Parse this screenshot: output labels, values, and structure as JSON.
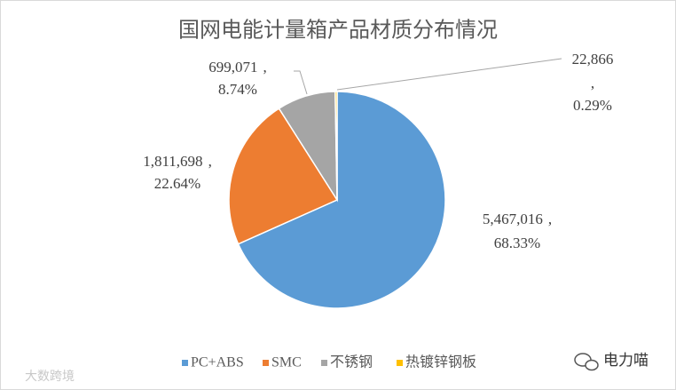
{
  "chart_data": {
    "type": "pie",
    "title": "国网电能计量箱产品材质分布情况",
    "categories": [
      "PC+ABS",
      "SMC",
      "不锈钢",
      "热镀锌钢板"
    ],
    "values": [
      5467016,
      1811698,
      699071,
      22866
    ],
    "value_labels": [
      "5,467,016",
      "1,811,698",
      "699,071",
      "22,866"
    ],
    "percent_labels": [
      "68.33%",
      "22.64%",
      "8.74%",
      "0.29%"
    ],
    "separator": ",",
    "colors": [
      "#5b9bd5",
      "#ed7d31",
      "#a5a5a5",
      "#ffc000"
    ],
    "legend": "bottom"
  },
  "watermarks": {
    "left": "大数跨境",
    "right": "电力喵"
  }
}
